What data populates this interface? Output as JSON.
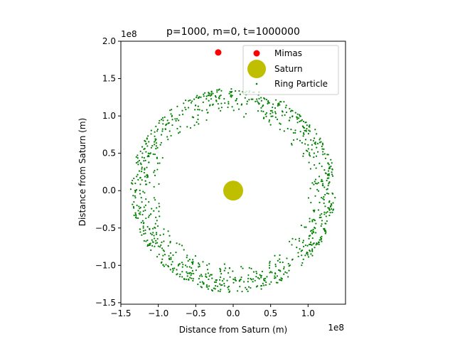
{
  "chart_data": {
    "type": "scatter",
    "title": "p=1000, m=0, t=1000000",
    "xlabel": "Distance from Saturn (m)",
    "ylabel": "Distance from Saturn (m)",
    "x_offset_label": "1e8",
    "y_offset_label": "1e8",
    "axis_scale": 100000000,
    "xlim": [
      -1.5,
      1.5
    ],
    "ylim": [
      -1.52,
      2.0
    ],
    "x_ticks": [
      {
        "value": -1.5,
        "label": "−1.5"
      },
      {
        "value": -1.0,
        "label": "−1.0"
      },
      {
        "value": -0.5,
        "label": "−0.5"
      },
      {
        "value": 0.0,
        "label": "0.0"
      },
      {
        "value": 0.5,
        "label": "0.5"
      },
      {
        "value": 1.0,
        "label": "1.0"
      }
    ],
    "y_ticks": [
      {
        "value": -1.5,
        "label": "−1.5"
      },
      {
        "value": -1.0,
        "label": "−1.0"
      },
      {
        "value": -0.5,
        "label": "−0.5"
      },
      {
        "value": 0.0,
        "label": "0.0"
      },
      {
        "value": 0.5,
        "label": "0.5"
      },
      {
        "value": 1.0,
        "label": "1.0"
      },
      {
        "value": 1.5,
        "label": "1.5"
      },
      {
        "value": 2.0,
        "label": "2.0"
      }
    ],
    "grid": false,
    "legend_position": "top-right",
    "series": [
      {
        "name": "Mimas",
        "color": "#ff0000",
        "marker": "circle",
        "points": [
          {
            "x": -0.2,
            "y": 1.85
          }
        ]
      },
      {
        "name": "Saturn",
        "color": "#bfbf00",
        "marker": "circle-large",
        "points": [
          {
            "x": 0.0,
            "y": 0.0
          }
        ]
      },
      {
        "name": "Ring Particle",
        "color": "#008000",
        "marker": "point",
        "ring": {
          "center_x": 0.0,
          "center_y": 0.0,
          "inner_radius": 0.98,
          "outer_radius": 1.37,
          "count": 1000
        }
      }
    ]
  }
}
